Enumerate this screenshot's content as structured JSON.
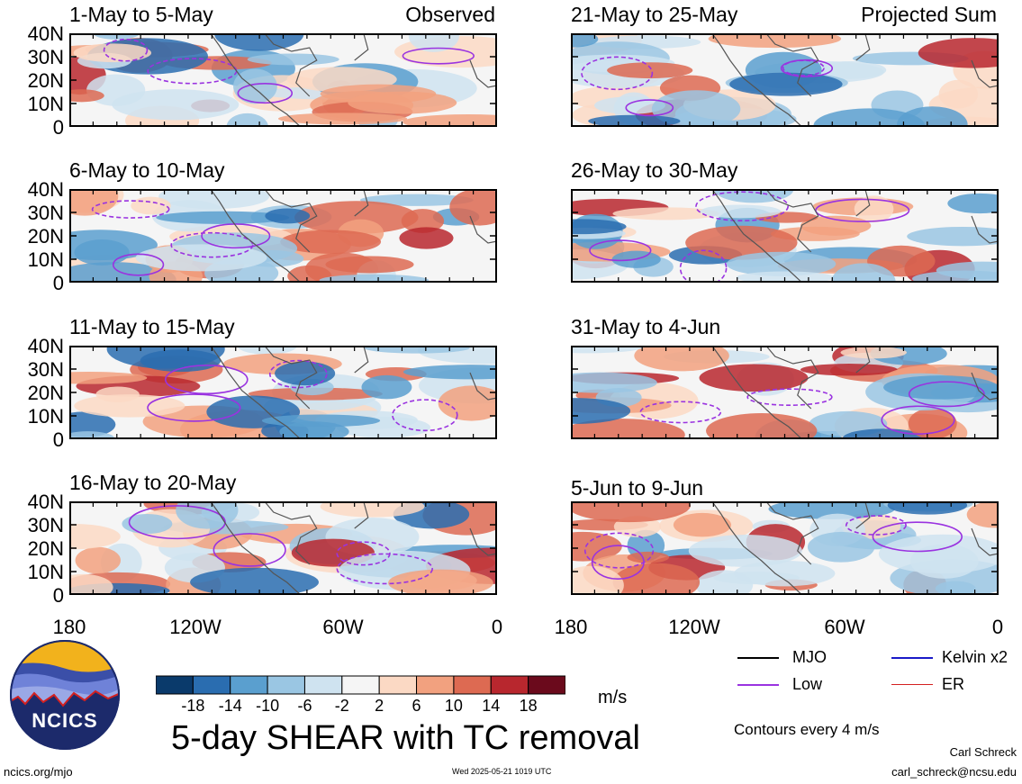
{
  "colors": {
    "scale": [
      "#0a3a6b",
      "#2a6db0",
      "#5a9fcf",
      "#9ac6e3",
      "#cfe3f0",
      "#f5f5f5",
      "#fbd9c4",
      "#f2a17f",
      "#dd6a52",
      "#b8272e",
      "#6b0a1c"
    ],
    "mjo": "#000000",
    "low": "#9a33e0",
    "kelvin": "#1a1ac8",
    "er": "#d42020",
    "coast": "#555555"
  },
  "panels": [
    {
      "id": "p1",
      "title": "1-May to 5-May",
      "tag": "Observed",
      "seed": 3
    },
    {
      "id": "p2",
      "title": "6-May to 10-May",
      "tag": "",
      "seed": 11
    },
    {
      "id": "p3",
      "title": "11-May to 15-May",
      "tag": "",
      "seed": 19
    },
    {
      "id": "p4",
      "title": "16-May to 20-May",
      "tag": "",
      "seed": 27
    },
    {
      "id": "p5",
      "title": "21-May to 25-May",
      "tag": "Projected Sum",
      "seed": 35
    },
    {
      "id": "p6",
      "title": "26-May to 30-May",
      "tag": "",
      "seed": 43
    },
    {
      "id": "p7",
      "title": "31-May to 4-Jun",
      "tag": "",
      "seed": 51
    },
    {
      "id": "p8",
      "title": "5-Jun to 9-Jun",
      "tag": "",
      "seed": 59
    }
  ],
  "lat_ticks": [
    "40N",
    "30N",
    "20N",
    "10N",
    "0"
  ],
  "lon_ticks": [
    "180",
    "120W",
    "60W",
    "0"
  ],
  "colorbar": {
    "ticks": [
      "-18",
      "-14",
      "-10",
      "-6",
      "-2",
      "2",
      "6",
      "10",
      "14",
      "18"
    ],
    "units": "m/s"
  },
  "legend": {
    "mjo": "MJO",
    "kelvin": "Kelvin x2",
    "low": "Low",
    "er": "ER",
    "contours": "Contours every 4 m/s"
  },
  "title": "5-day SHEAR with TC removal",
  "logo_text": "NCICS",
  "footer": {
    "url": "ncics.org/mjo",
    "timestamp": "Wed 2025-05-21 1019 UTC",
    "author": "Carl Schreck",
    "email": "carl_schreck@ncsu.edu"
  }
}
